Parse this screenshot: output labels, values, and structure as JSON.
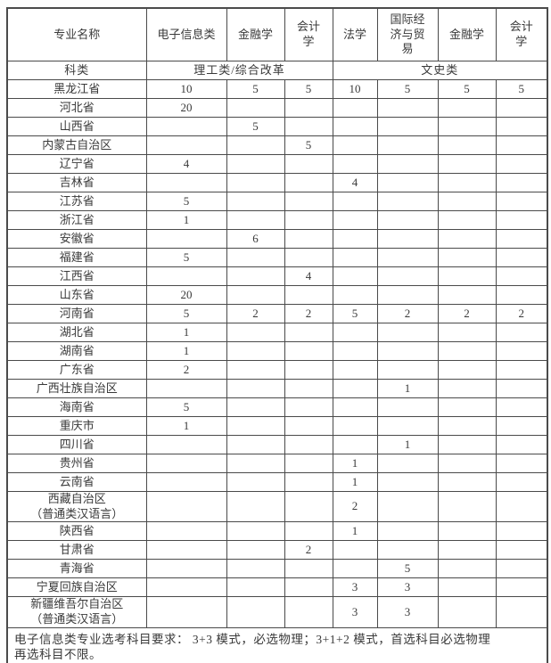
{
  "table": {
    "header": {
      "name_col": "专业名称",
      "majors": [
        "电子信息类",
        "金融学",
        "会计学",
        "法学",
        "国际经济与贸易",
        "金融学",
        "会计学"
      ]
    },
    "subheader": {
      "label": "科类",
      "groups": [
        {
          "label": "理工类/综合改革",
          "span": 3
        },
        {
          "label": "文史类",
          "span": 4
        }
      ]
    },
    "rows": [
      {
        "province": "黑龙江省",
        "values": [
          "10",
          "5",
          "5",
          "10",
          "5",
          "5",
          "5"
        ]
      },
      {
        "province": "河北省",
        "values": [
          "20",
          "",
          "",
          "",
          "",
          "",
          ""
        ]
      },
      {
        "province": "山西省",
        "values": [
          "",
          "5",
          "",
          "",
          "",
          "",
          ""
        ]
      },
      {
        "province": "内蒙古自治区",
        "values": [
          "",
          "",
          "5",
          "",
          "",
          "",
          ""
        ]
      },
      {
        "province": "辽宁省",
        "values": [
          "4",
          "",
          "",
          "",
          "",
          "",
          ""
        ]
      },
      {
        "province": "吉林省",
        "values": [
          "",
          "",
          "",
          "4",
          "",
          "",
          ""
        ]
      },
      {
        "province": "江苏省",
        "values": [
          "5",
          "",
          "",
          "",
          "",
          "",
          ""
        ]
      },
      {
        "province": "浙江省",
        "values": [
          "1",
          "",
          "",
          "",
          "",
          "",
          ""
        ]
      },
      {
        "province": "安徽省",
        "values": [
          "",
          "6",
          "",
          "",
          "",
          "",
          ""
        ]
      },
      {
        "province": "福建省",
        "values": [
          "5",
          "",
          "",
          "",
          "",
          "",
          ""
        ]
      },
      {
        "province": "江西省",
        "values": [
          "",
          "",
          "4",
          "",
          "",
          "",
          ""
        ]
      },
      {
        "province": "山东省",
        "values": [
          "20",
          "",
          "",
          "",
          "",
          "",
          ""
        ]
      },
      {
        "province": "河南省",
        "values": [
          "5",
          "2",
          "2",
          "5",
          "2",
          "2",
          "2"
        ]
      },
      {
        "province": "湖北省",
        "values": [
          "1",
          "",
          "",
          "",
          "",
          "",
          ""
        ]
      },
      {
        "province": "湖南省",
        "values": [
          "1",
          "",
          "",
          "",
          "",
          "",
          ""
        ]
      },
      {
        "province": "广东省",
        "values": [
          "2",
          "",
          "",
          "",
          "",
          "",
          ""
        ]
      },
      {
        "province": "广西壮族自治区",
        "values": [
          "",
          "",
          "",
          "",
          "1",
          "",
          ""
        ]
      },
      {
        "province": "海南省",
        "values": [
          "5",
          "",
          "",
          "",
          "",
          "",
          ""
        ]
      },
      {
        "province": "重庆市",
        "values": [
          "1",
          "",
          "",
          "",
          "",
          "",
          ""
        ]
      },
      {
        "province": "四川省",
        "values": [
          "",
          "",
          "",
          "",
          "1",
          "",
          ""
        ]
      },
      {
        "province": "贵州省",
        "values": [
          "",
          "",
          "",
          "1",
          "",
          "",
          ""
        ]
      },
      {
        "province": "云南省",
        "values": [
          "",
          "",
          "",
          "1",
          "",
          "",
          ""
        ]
      },
      {
        "province": "西藏自治区",
        "province_line2": "（普通类汉语言）",
        "values": [
          "",
          "",
          "",
          "2",
          "",
          "",
          ""
        ]
      },
      {
        "province": "陕西省",
        "values": [
          "",
          "",
          "",
          "1",
          "",
          "",
          ""
        ]
      },
      {
        "province": "甘肃省",
        "values": [
          "",
          "",
          "2",
          "",
          "",
          "",
          ""
        ]
      },
      {
        "province": "青海省",
        "values": [
          "",
          "",
          "",
          "",
          "5",
          "",
          ""
        ]
      },
      {
        "province": "宁夏回族自治区",
        "values": [
          "",
          "",
          "",
          "3",
          "3",
          "",
          ""
        ]
      },
      {
        "province": "新疆维吾尔自治区",
        "province_line2": "（普通类汉语言）",
        "values": [
          "",
          "",
          "",
          "3",
          "3",
          "",
          ""
        ]
      }
    ],
    "footer_note": {
      "line1": "电子信息类专业选考科目要求： 3+3 模式，必选物理；3+1+2 模式，首选科目必选物理",
      "line2": "再选科目不限。"
    }
  },
  "colors": {
    "border": "#4a4a4a",
    "text": "#3a3a3a",
    "background": "#ffffff"
  }
}
